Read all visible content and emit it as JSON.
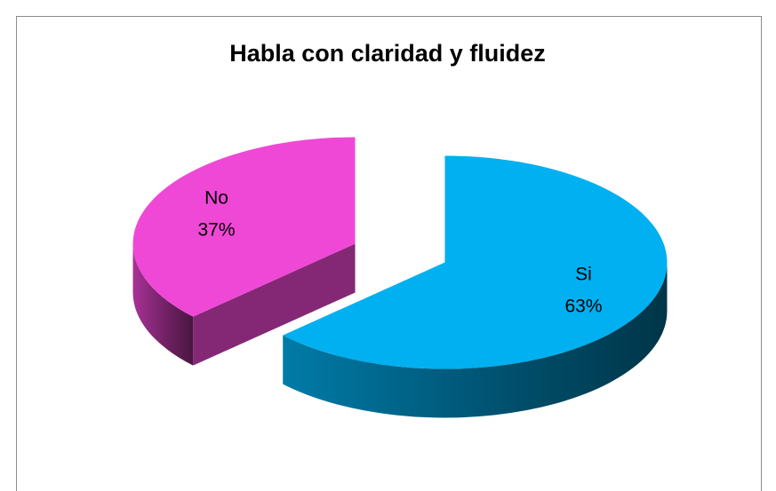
{
  "chart_data": {
    "type": "pie",
    "title": "Habla con claridad y fluidez",
    "categories": [
      "Si",
      "No"
    ],
    "values": [
      63,
      37
    ],
    "value_labels": [
      "63%",
      "37%"
    ],
    "colors": [
      "#00b0f0",
      "#f048d6"
    ],
    "exploded": true,
    "three_d": true
  }
}
